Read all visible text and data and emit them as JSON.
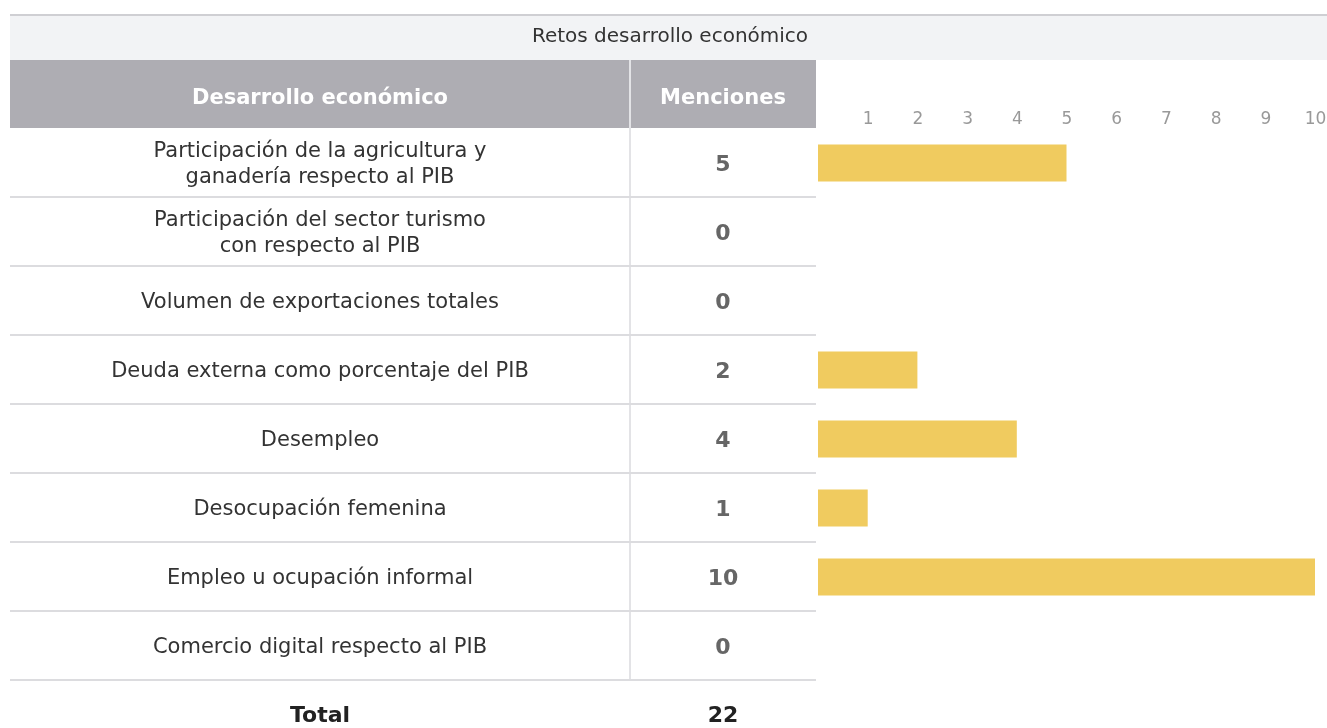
{
  "chart_data": {
    "type": "bar",
    "orientation": "horizontal",
    "title": "Retos desarrollo económico",
    "ylabel": "Desarrollo económico",
    "xlabel": "Menciones",
    "categories": [
      "Participación de la agricultura y ganadería respecto al PIB",
      "Participación del sector turismo con respecto al PIB",
      "Volumen de exportaciones totales",
      "Deuda externa como porcentaje del PIB",
      "Desempleo",
      "Desocupación femenina",
      "Empleo u ocupación informal",
      "Comercio digital respecto al PIB"
    ],
    "values": [
      5,
      0,
      0,
      2,
      4,
      1,
      10,
      0
    ],
    "color": "#f0cb5f",
    "xlim": [
      0,
      10
    ],
    "x2lim": [
      0,
      10
    ],
    "x2ticks": [
      1,
      2,
      3,
      4,
      5,
      6,
      7,
      8,
      9,
      10
    ],
    "data_labels": true,
    "annotations": [
      "Total",
      "22"
    ]
  }
}
